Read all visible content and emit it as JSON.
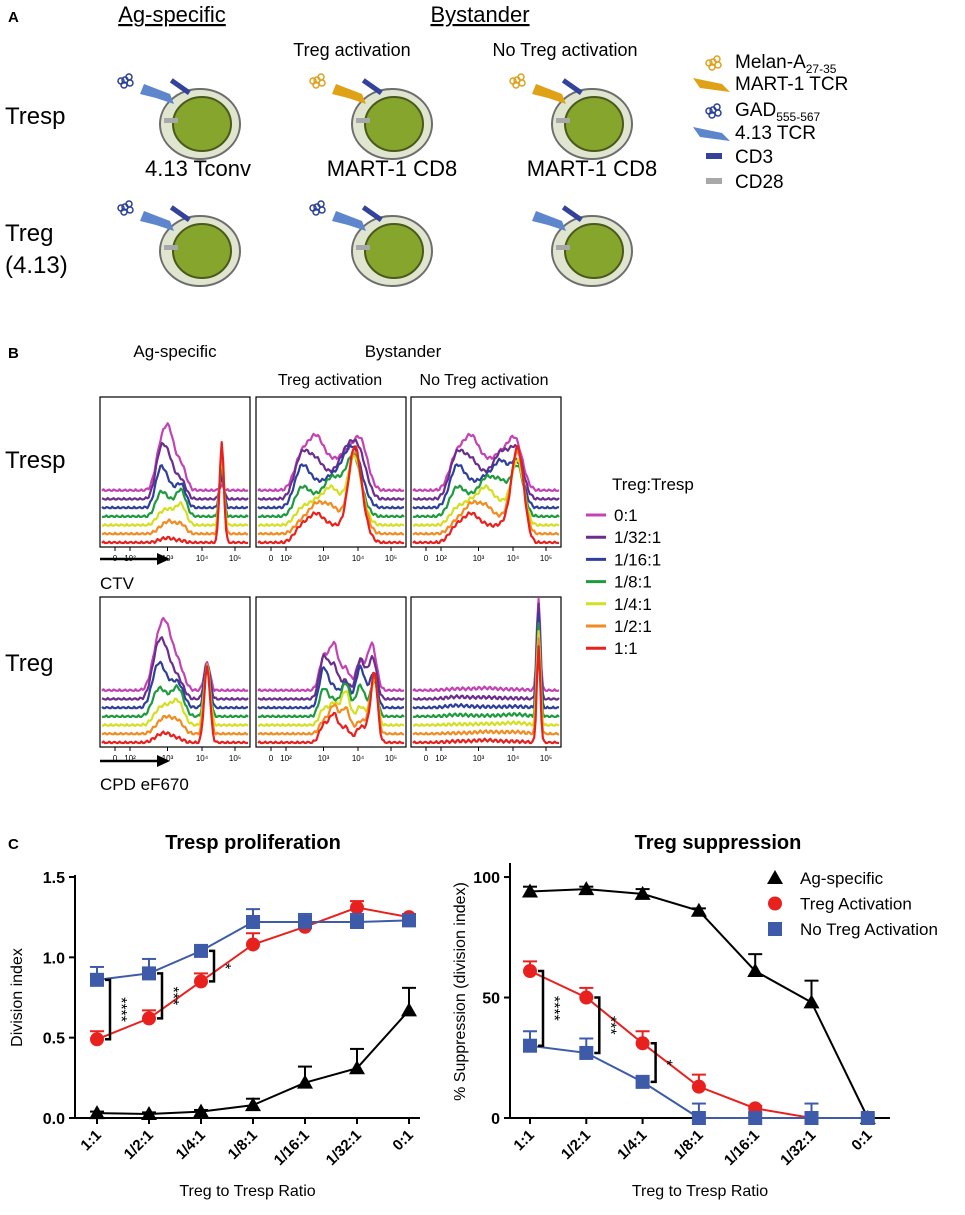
{
  "panel_a": {
    "letter": "A",
    "col_headers": [
      "Ag-specific",
      "Bystander"
    ],
    "sub_headers": [
      "Treg activation",
      "No Treg activation"
    ],
    "row_labels": [
      "Tresp",
      "Treg",
      "(4.13)"
    ],
    "cell_labels": [
      "4.13 Tconv",
      "MART-1 CD8",
      "MART-1 CD8"
    ],
    "legend": [
      {
        "text": "Melan-A",
        "sub": "27-35"
      },
      {
        "text": "MART-1 TCR"
      },
      {
        "text": "GAD",
        "sub": "555-567"
      },
      {
        "text": "4.13 TCR"
      },
      {
        "text": "CD3"
      },
      {
        "text": "CD28"
      }
    ]
  },
  "panel_b": {
    "letter": "B",
    "col_headers": [
      "Ag-specific",
      "Bystander"
    ],
    "sub_headers": [
      "Treg activation",
      "No Treg activation"
    ],
    "row_labels": [
      "Tresp",
      "Treg"
    ],
    "axis_labels": [
      "CTV",
      "CPD eF670"
    ],
    "tick_labels": [
      "0",
      "10²",
      "10³",
      "10⁴",
      "10⁵"
    ],
    "legend_title": "Treg:Tresp",
    "legend": [
      {
        "label": "0:1",
        "color": "#c443b4"
      },
      {
        "label": "1/32:1",
        "color": "#6b2d8e"
      },
      {
        "label": "1/16:1",
        "color": "#2f3f9c"
      },
      {
        "label": "1/8:1",
        "color": "#1f9b3e"
      },
      {
        "label": "1/4:1",
        "color": "#d4df22"
      },
      {
        "label": "1/2:1",
        "color": "#f28b20"
      },
      {
        "label": "1:1",
        "color": "#e8211f"
      }
    ]
  },
  "panel_c": {
    "letter": "C"
  },
  "chart_data": [
    {
      "type": "line",
      "title": "Tresp proliferation",
      "x_label": "Treg to Tresp Ratio",
      "y_label": "Division index",
      "categories": [
        "1:1",
        "1/2:1",
        "1/4:1",
        "1/8:1",
        "1/16:1",
        "1/32:1",
        "0:1"
      ],
      "ylim": [
        0,
        1.5
      ],
      "yticks": [
        {
          "value": 0,
          "label": "0.0"
        },
        0.5,
        {
          "value": 1,
          "label": "1.0"
        },
        1.5
      ],
      "series": [
        {
          "color": "#000000",
          "marker": "triangle",
          "values": [
            0.03,
            0.025,
            0.04,
            0.08,
            0.22,
            0.31,
            0.67
          ],
          "errors": [
            0.01,
            0.01,
            0.01,
            0.04,
            0.1,
            0.12,
            0.14
          ]
        },
        {
          "color": "#e8211f",
          "marker": "circle",
          "values": [
            0.49,
            0.62,
            0.85,
            1.08,
            1.19,
            1.31,
            1.25
          ],
          "errors": [
            0.05,
            0.05,
            0.05,
            0.07,
            0.03,
            0.04,
            0.02
          ]
        },
        {
          "color": "#3d5ba9",
          "marker": "square",
          "values": [
            0.86,
            0.9,
            1.04,
            1.22,
            1.22,
            1.22,
            1.23
          ],
          "errors": [
            0.08,
            0.09,
            0.02,
            0.08,
            0.05,
            0.05,
            0.03
          ]
        }
      ],
      "annotations": [
        "****",
        "***",
        "*"
      ]
    },
    {
      "type": "line",
      "title": "Treg suppression",
      "x_label": "Treg to Tresp Ratio",
      "y_label": "% Suppression (division index)",
      "categories": [
        "1:1",
        "1/2:1",
        "1/4:1",
        "1/8:1",
        "1/16:1",
        "1/32:1",
        "0:1"
      ],
      "ylim": [
        0,
        105
      ],
      "yticks": [
        0,
        50,
        100
      ],
      "legend": "upper right",
      "series": [
        {
          "name": "Ag-specific",
          "color": "#000000",
          "marker": "triangle",
          "values": [
            94,
            95,
            93,
            86,
            61,
            48,
            0
          ],
          "errors": [
            2,
            1,
            2,
            1,
            7,
            9,
            0
          ]
        },
        {
          "name": "Treg Activation",
          "color": "#e8211f",
          "marker": "circle",
          "values": [
            61,
            50,
            31,
            13,
            4,
            0,
            0
          ],
          "errors": [
            4,
            4,
            5,
            5,
            1,
            1,
            0
          ]
        },
        {
          "name": "No Treg Activation",
          "color": "#3d5ba9",
          "marker": "square",
          "values": [
            30,
            27,
            15,
            0,
            0,
            0,
            0
          ],
          "errors": [
            6,
            6,
            1,
            6,
            2,
            6,
            0
          ]
        }
      ],
      "annotations": [
        "****",
        "***",
        "*"
      ]
    }
  ]
}
